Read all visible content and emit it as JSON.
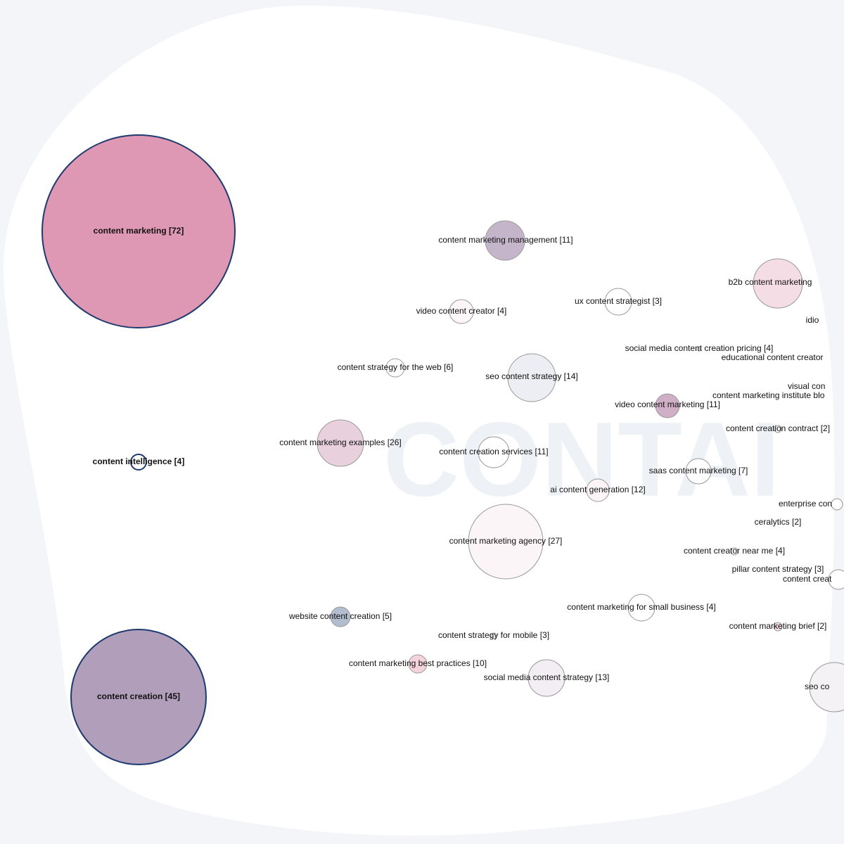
{
  "watermark": "CONTAI",
  "nodes": [
    {
      "label": "content marketing [72]"
    },
    {
      "label": "content creation [45]"
    },
    {
      "label": "content intelligence [4]"
    },
    {
      "label": "content marketing management [11]"
    },
    {
      "label": "b2b content marketing"
    },
    {
      "label": "idio"
    },
    {
      "label": "video content creator [4]"
    },
    {
      "label": "ux content strategist [3]"
    },
    {
      "label": "social media content creation pricing [4]"
    },
    {
      "label": "educational content creator"
    },
    {
      "label": "content strategy for the web [6]"
    },
    {
      "label": "seo content strategy [14]"
    },
    {
      "label": "visual con"
    },
    {
      "label": "content marketing institute blo"
    },
    {
      "label": "video content marketing [11]"
    },
    {
      "label": "content creation contract [2]"
    },
    {
      "label": "content marketing examples [26]"
    },
    {
      "label": "content creation services [11]"
    },
    {
      "label": "saas content marketing [7]"
    },
    {
      "label": "ai content generation [12]"
    },
    {
      "label": "enterprise con"
    },
    {
      "label": "ceralytics [2]"
    },
    {
      "label": "content marketing agency [27]"
    },
    {
      "label": "content creator near me [4]"
    },
    {
      "label": "pillar content strategy [3]"
    },
    {
      "label": "content creat"
    },
    {
      "label": "content marketing for small business [4]"
    },
    {
      "label": "website content creation [5]"
    },
    {
      "label": "content marketing brief [2]"
    },
    {
      "label": "content strategy for mobile [3]"
    },
    {
      "label": "content marketing best practices [10]"
    },
    {
      "label": "social media content strategy [13]"
    },
    {
      "label": "seo co"
    }
  ]
}
